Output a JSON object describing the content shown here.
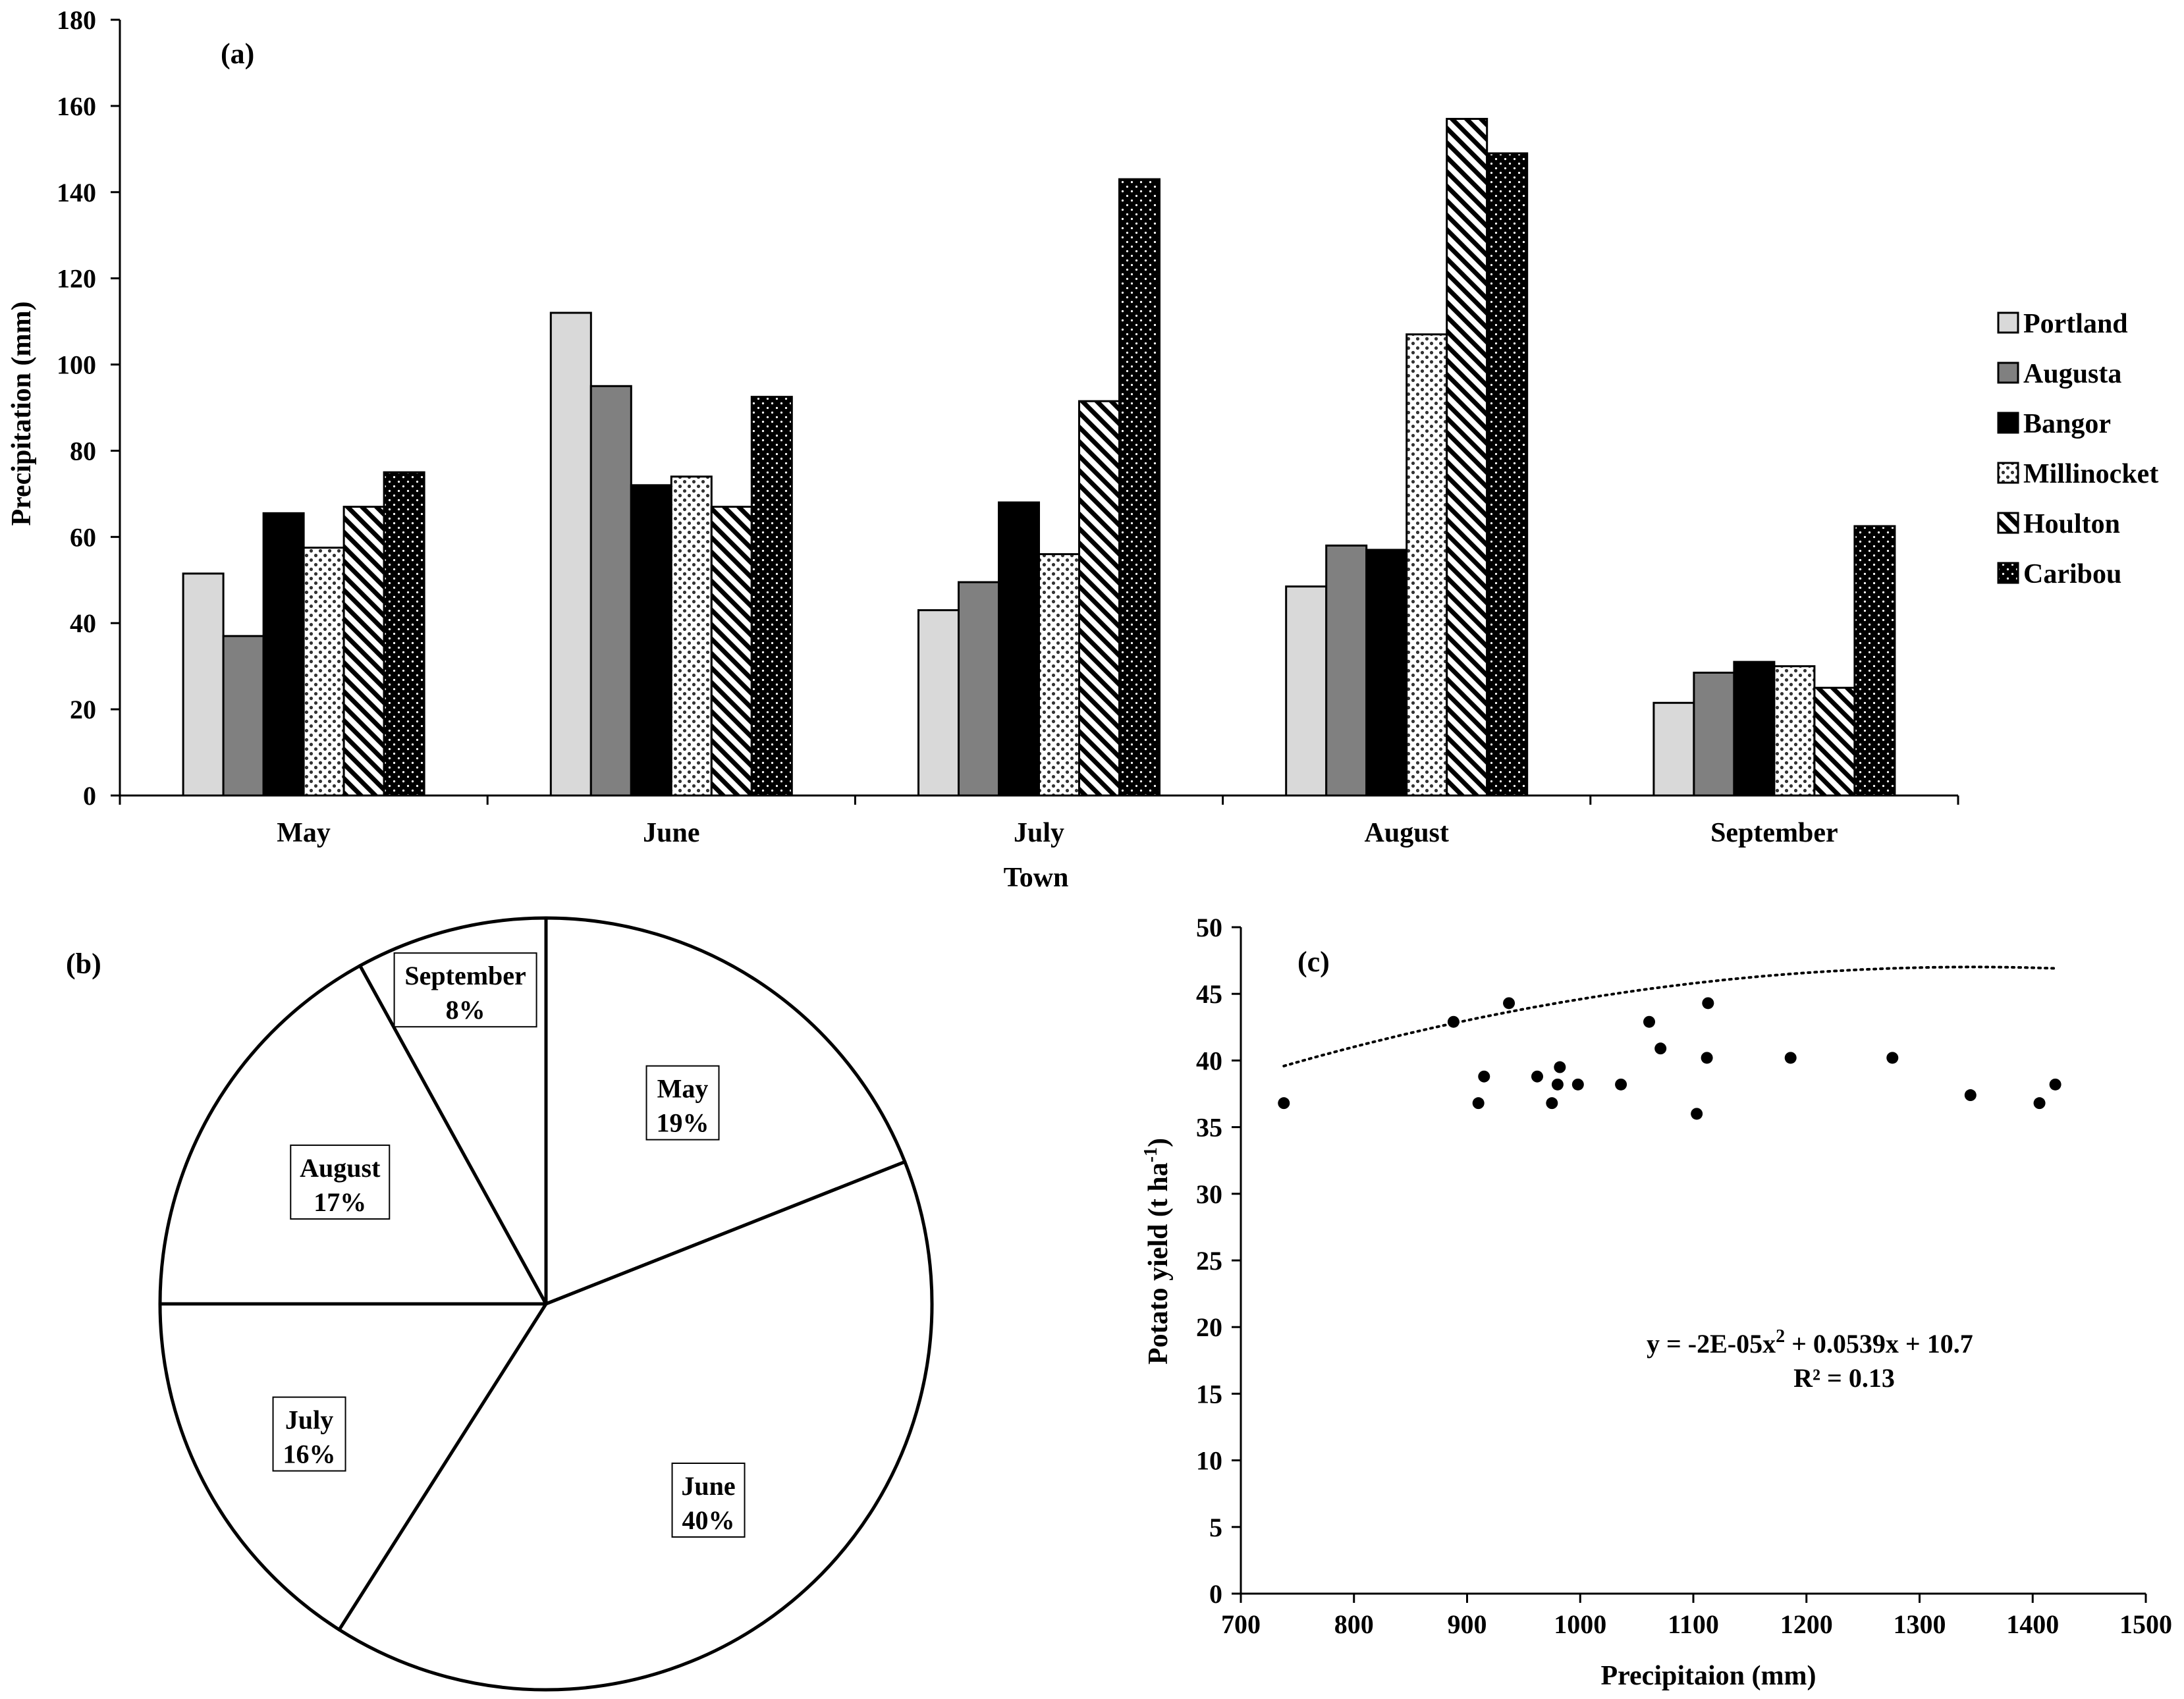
{
  "chart_data": [
    {
      "panel": "(a)",
      "type": "bar",
      "title": "",
      "xlabel": "Town",
      "ylabel": "Precipitation (mm)",
      "ylim": [
        0,
        180
      ],
      "yticks": [
        0,
        20,
        40,
        60,
        80,
        100,
        120,
        140,
        160,
        180
      ],
      "categories": [
        "May",
        "June",
        "July",
        "August",
        "September"
      ],
      "legend_position": "right",
      "series": [
        {
          "name": "Portland",
          "values": [
            51.5,
            112,
            43,
            48.5,
            21.5
          ],
          "fill": "#d9d9d9",
          "pattern": "solid"
        },
        {
          "name": "Augusta",
          "values": [
            37,
            95,
            49.5,
            58,
            28.5
          ],
          "fill": "#808080",
          "pattern": "solid"
        },
        {
          "name": "Bangor",
          "values": [
            65.5,
            72,
            68,
            57,
            31
          ],
          "fill": "#000000",
          "pattern": "solid"
        },
        {
          "name": "Millinocket",
          "values": [
            57.5,
            74,
            56,
            107,
            30
          ],
          "fill": "#ffffff",
          "pattern": "dots-sparse"
        },
        {
          "name": "Houlton",
          "values": [
            67,
            67,
            91.5,
            157,
            25
          ],
          "fill": "#ffffff",
          "pattern": "diagonal"
        },
        {
          "name": "Caribou",
          "values": [
            75,
            92.5,
            143,
            149,
            62.5
          ],
          "fill": "#000000",
          "pattern": "dots-dense"
        }
      ]
    },
    {
      "panel": "(b)",
      "type": "pie",
      "title": "",
      "slices": [
        {
          "label": "May",
          "value": 19,
          "pct_label": "19%"
        },
        {
          "label": "June",
          "value": 40,
          "pct_label": "40%"
        },
        {
          "label": "July",
          "value": 16,
          "pct_label": "16%"
        },
        {
          "label": "August",
          "value": 17,
          "pct_label": "17%"
        },
        {
          "label": "September",
          "value": 8,
          "pct_label": "8%"
        }
      ]
    },
    {
      "panel": "(c)",
      "type": "scatter",
      "title": "",
      "xlabel": "Precipitaion (mm)",
      "ylabel": "Potato yield (t ha",
      "ylabel_sup": "-1",
      "ylabel_end": ")",
      "xlim": [
        700,
        1500
      ],
      "ylim": [
        0,
        50
      ],
      "xticks": [
        700,
        800,
        900,
        1000,
        1100,
        1200,
        1300,
        1400,
        1500
      ],
      "yticks": [
        0,
        5,
        10,
        15,
        20,
        25,
        30,
        35,
        40,
        45,
        50
      ],
      "points": [
        [
          738,
          36.8
        ],
        [
          888,
          42.9
        ],
        [
          910,
          36.8
        ],
        [
          915,
          38.8
        ],
        [
          937,
          44.3
        ],
        [
          962,
          38.8
        ],
        [
          975,
          36.8
        ],
        [
          980,
          38.2
        ],
        [
          982,
          39.5
        ],
        [
          998,
          38.2
        ],
        [
          1036,
          38.2
        ],
        [
          1061,
          42.9
        ],
        [
          1071,
          40.9
        ],
        [
          1103,
          36.0
        ],
        [
          1112,
          40.2
        ],
        [
          1113,
          44.3
        ],
        [
          1186,
          40.2
        ],
        [
          1276,
          40.2
        ],
        [
          1345,
          37.4
        ],
        [
          1406,
          36.8
        ],
        [
          1420,
          38.2
        ]
      ],
      "trendline": {
        "type": "polynomial-2",
        "coefficients": [
          -2e-05,
          0.0539,
          10.7
        ],
        "x_range": [
          738,
          1420
        ]
      },
      "equation_label": "y = -2E-05x",
      "equation_sup": "2",
      "equation_rest": " + 0.0539x + 10.7",
      "r2_label": "R² = 0.13"
    }
  ]
}
